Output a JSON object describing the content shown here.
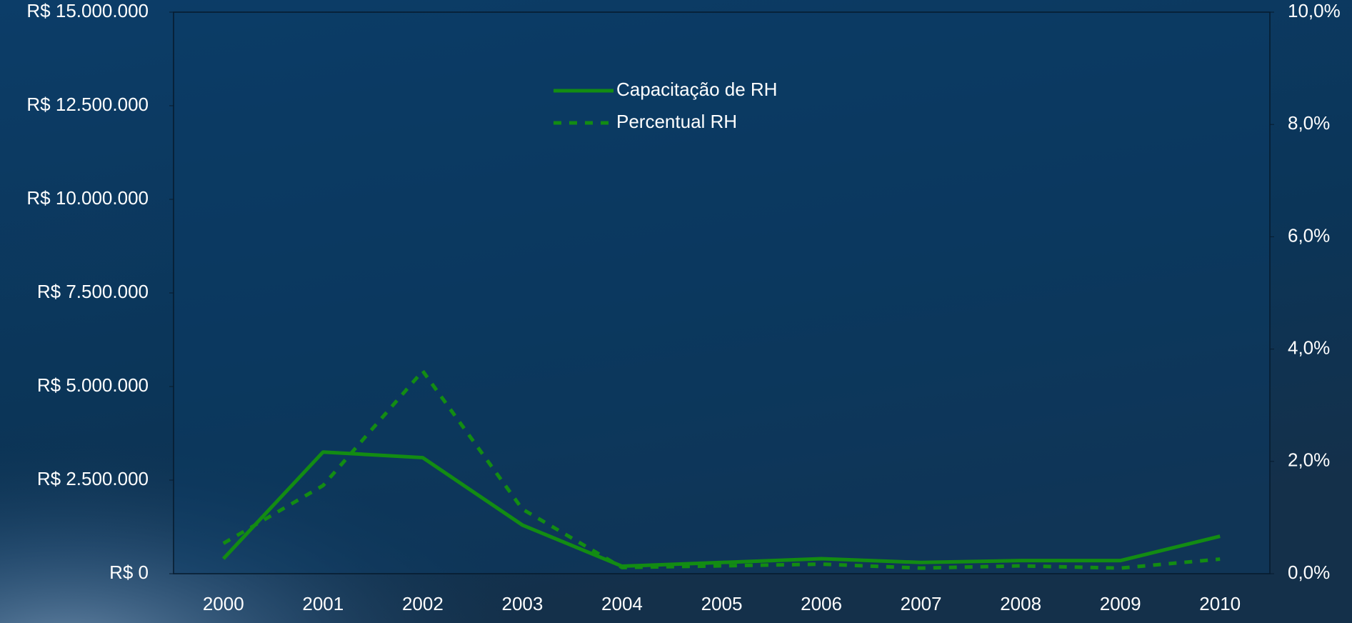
{
  "chart_data": {
    "type": "line",
    "categories": [
      "2000",
      "2001",
      "2002",
      "2003",
      "2004",
      "2005",
      "2006",
      "2007",
      "2008",
      "2009",
      "2010"
    ],
    "series": [
      {
        "name": "Capacitação de RH",
        "color": "#138c13",
        "dash": "solid",
        "values": [
          400000,
          3250000,
          3100000,
          1300000,
          200000,
          300000,
          400000,
          300000,
          350000,
          350000,
          1000000
        ]
      },
      {
        "name": "Percentual RH",
        "color": "#138c13",
        "dash": "dashed",
        "axis": "y2",
        "values": [
          0.54,
          1.57,
          3.61,
          1.15,
          0.11,
          0.14,
          0.17,
          0.1,
          0.14,
          0.1,
          0.26
        ]
      }
    ],
    "ylim": [
      0,
      15000000
    ],
    "yticks": [
      {
        "value": 0,
        "label": "R$ 0"
      },
      {
        "value": 2500000,
        "label": "R$ 2.500.000"
      },
      {
        "value": 5000000,
        "label": "R$ 5.000.000"
      },
      {
        "value": 7500000,
        "label": "R$ 7.500.000"
      },
      {
        "value": 10000000,
        "label": "R$ 10.000.000"
      },
      {
        "value": 12500000,
        "label": "R$ 12.500.000"
      },
      {
        "value": 15000000,
        "label": "R$ 15.000.000"
      }
    ],
    "y2lim": [
      0,
      10
    ],
    "y2ticks": [
      {
        "value": 0,
        "label": "0,0%"
      },
      {
        "value": 2,
        "label": "2,0%"
      },
      {
        "value": 4,
        "label": "4,0%"
      },
      {
        "value": 6,
        "label": "6,0%"
      },
      {
        "value": 8,
        "label": "8,0%"
      },
      {
        "value": 10,
        "label": "10,0%"
      }
    ],
    "grid": false,
    "legend": "upper center"
  }
}
